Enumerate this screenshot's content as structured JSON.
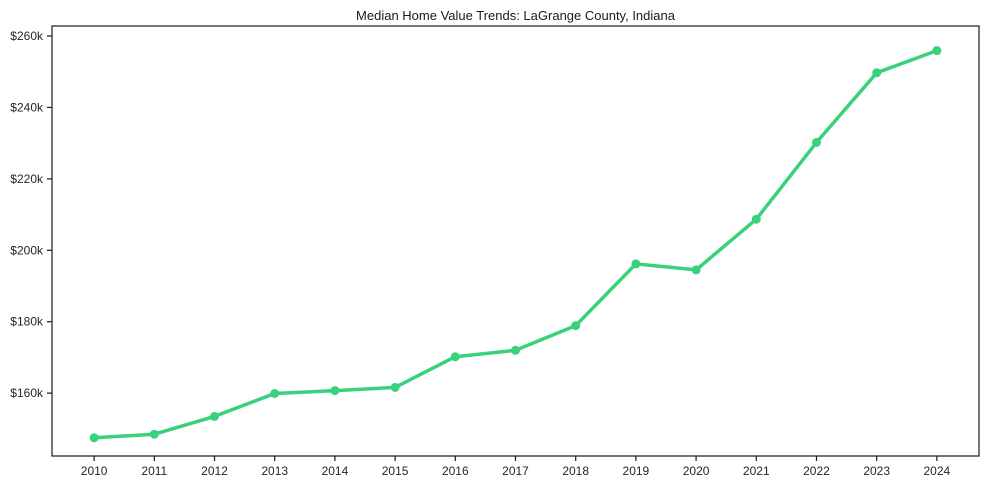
{
  "chart_data": {
    "type": "line",
    "title": "Median Home Value Trends: LaGrange County, Indiana",
    "x": [
      2010,
      2011,
      2012,
      2013,
      2014,
      2015,
      2016,
      2017,
      2018,
      2019,
      2020,
      2021,
      2022,
      2023,
      2024
    ],
    "x_tick_labels": [
      "2010",
      "2011",
      "2012",
      "2013",
      "2014",
      "2015",
      "2016",
      "2017",
      "2018",
      "2019",
      "2020",
      "2021",
      "2022",
      "2023",
      "2024"
    ],
    "values": [
      147500,
      148500,
      153500,
      159900,
      160700,
      161600,
      170200,
      172000,
      178900,
      196200,
      194500,
      208700,
      230200,
      249700,
      255900
    ],
    "xlim": [
      2009.3,
      2024.7
    ],
    "ylim": [
      142400,
      262800
    ],
    "y_ticks": [
      {
        "value": 160000,
        "label": "$160k"
      },
      {
        "value": 180000,
        "label": "$180k"
      },
      {
        "value": 200000,
        "label": "$200k"
      },
      {
        "value": 220000,
        "label": "$220k"
      },
      {
        "value": 240000,
        "label": "$240k"
      },
      {
        "value": 260000,
        "label": "$260k"
      }
    ],
    "grid": false,
    "legend": "none",
    "line_color": "#38d17c",
    "marker": "circle",
    "axis_color": "#1a1a1a",
    "tick_label_color": "#262626",
    "background": "#ffffff"
  }
}
